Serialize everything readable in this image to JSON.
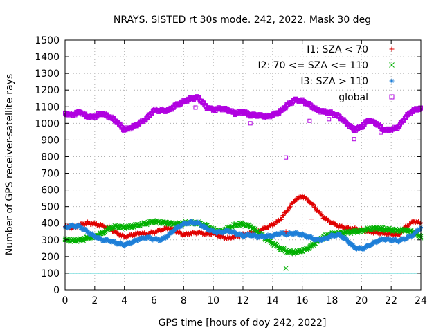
{
  "chart_data": {
    "type": "scatter",
    "title": "NRAYS. SISTED rt 30s mode. 242, 2022. Mask 30 deg",
    "xlabel": "GPS time [hours of doy 242, 2022]",
    "ylabel": "Number of GPS receiver-satellite rays",
    "xlim": [
      0,
      24
    ],
    "ylim": [
      0,
      1500
    ],
    "xticks": [
      0,
      2,
      4,
      6,
      8,
      10,
      12,
      14,
      16,
      18,
      20,
      22,
      24
    ],
    "yticks": [
      0,
      100,
      200,
      300,
      400,
      500,
      600,
      700,
      800,
      900,
      1000,
      1100,
      1200,
      1300,
      1400,
      1500
    ],
    "grid": true,
    "legend_position": "top-right",
    "threshold_line": {
      "y": 100,
      "color": "#00c0c0"
    },
    "series": [
      {
        "name": "I1: SZA < 70",
        "marker": "plus",
        "color": "#e00000",
        "x": [
          0,
          0.5,
          1,
          1.5,
          2,
          2.5,
          3,
          3.5,
          4,
          4.5,
          5,
          5.5,
          6,
          6.5,
          7,
          7.5,
          8,
          8.5,
          9,
          9.5,
          10,
          10.5,
          11,
          11.5,
          12,
          12.5,
          13,
          13.5,
          14,
          14.5,
          15,
          15.5,
          16,
          16.5,
          17,
          17.5,
          18,
          18.5,
          19,
          19.5,
          20,
          20.5,
          21,
          21.5,
          22,
          22.5,
          23,
          23.5,
          24
        ],
        "values": [
          380,
          370,
          390,
          400,
          395,
          385,
          370,
          340,
          320,
          330,
          340,
          335,
          345,
          360,
          370,
          350,
          330,
          340,
          345,
          335,
          340,
          320,
          310,
          320,
          330,
          340,
          350,
          370,
          390,
          420,
          480,
          540,
          565,
          530,
          480,
          430,
          400,
          380,
          370,
          365,
          360,
          350,
          345,
          340,
          335,
          330,
          380,
          410,
          400
        ]
      },
      {
        "name": "I2: 70 <= SZA <= 110",
        "marker": "cross",
        "color": "#00b000",
        "x": [
          0,
          0.5,
          1,
          1.5,
          2,
          2.5,
          3,
          3.5,
          4,
          4.5,
          5,
          5.5,
          6,
          6.5,
          7,
          7.5,
          8,
          8.5,
          9,
          9.5,
          10,
          10.5,
          11,
          11.5,
          12,
          12.5,
          13,
          13.5,
          14,
          14.5,
          15,
          15.5,
          16,
          16.5,
          17,
          17.5,
          18,
          18.5,
          19,
          19.5,
          20,
          20.5,
          21,
          21.5,
          22,
          22.5,
          23,
          23.5,
          24
        ],
        "values": [
          300,
          295,
          300,
          310,
          320,
          340,
          370,
          380,
          375,
          380,
          390,
          400,
          410,
          405,
          400,
          395,
          400,
          405,
          400,
          385,
          360,
          350,
          370,
          390,
          395,
          380,
          350,
          310,
          280,
          250,
          230,
          225,
          235,
          255,
          290,
          320,
          335,
          340,
          345,
          350,
          355,
          365,
          370,
          365,
          360,
          355,
          360,
          345,
          320
        ]
      },
      {
        "name": "I3: SZA > 110",
        "marker": "star",
        "color": "#1e7fd8",
        "x": [
          0,
          0.5,
          1,
          1.5,
          2,
          2.5,
          3,
          3.5,
          4,
          4.5,
          5,
          5.5,
          6,
          6.5,
          7,
          7.5,
          8,
          8.5,
          9,
          9.5,
          10,
          10.5,
          11,
          11.5,
          12,
          12.5,
          13,
          13.5,
          14,
          14.5,
          15,
          15.5,
          16,
          16.5,
          17,
          17.5,
          18,
          18.5,
          19,
          19.5,
          20,
          20.5,
          21,
          21.5,
          22,
          22.5,
          23,
          23.5,
          24
        ],
        "values": [
          375,
          385,
          380,
          350,
          320,
          300,
          295,
          280,
          270,
          285,
          305,
          315,
          305,
          300,
          330,
          370,
          395,
          405,
          400,
          370,
          350,
          345,
          355,
          340,
          325,
          330,
          320,
          320,
          325,
          340,
          335,
          340,
          330,
          315,
          300,
          305,
          325,
          330,
          300,
          255,
          245,
          265,
          290,
          305,
          300,
          295,
          310,
          330,
          375
        ]
      },
      {
        "name": "global",
        "marker": "square",
        "color": "#b000e0",
        "x": [
          0,
          0.5,
          1,
          1.5,
          2,
          2.5,
          3,
          3.5,
          4,
          4.5,
          5,
          5.5,
          6,
          6.5,
          7,
          7.5,
          8,
          8.5,
          9,
          9.5,
          10,
          10.5,
          11,
          11.5,
          12,
          12.5,
          13,
          13.5,
          14,
          14.5,
          15,
          15.5,
          16,
          16.5,
          17,
          17.5,
          18,
          18.5,
          19,
          19.5,
          20,
          20.5,
          21,
          21.5,
          22,
          22.5,
          23,
          23.5,
          24
        ],
        "values": [
          1060,
          1050,
          1070,
          1040,
          1040,
          1060,
          1040,
          1010,
          960,
          975,
          1000,
          1030,
          1080,
          1075,
          1080,
          1110,
          1130,
          1150,
          1155,
          1100,
          1080,
          1090,
          1080,
          1060,
          1070,
          1050,
          1050,
          1040,
          1050,
          1070,
          1110,
          1140,
          1135,
          1110,
          1080,
          1070,
          1060,
          1040,
          1000,
          960,
          980,
          1020,
          1000,
          960,
          960,
          980,
          1040,
          1080,
          1090
        ]
      }
    ],
    "outliers": [
      {
        "series": "global",
        "x": 14.9,
        "y": 795
      },
      {
        "series": "global",
        "x": 19.5,
        "y": 905
      },
      {
        "series": "global",
        "x": 16.5,
        "y": 1015
      },
      {
        "series": "global",
        "x": 17.8,
        "y": 1025
      },
      {
        "series": "global",
        "x": 21.3,
        "y": 945
      },
      {
        "series": "global",
        "x": 12.5,
        "y": 1000
      },
      {
        "series": "global",
        "x": 8.8,
        "y": 1095
      },
      {
        "series": "I2: 70 <= SZA <= 110",
        "x": 14.9,
        "y": 130
      },
      {
        "series": "I1: SZA < 70",
        "x": 16.6,
        "y": 425
      },
      {
        "series": "I1: SZA < 70",
        "x": 14.9,
        "y": 350
      }
    ]
  }
}
